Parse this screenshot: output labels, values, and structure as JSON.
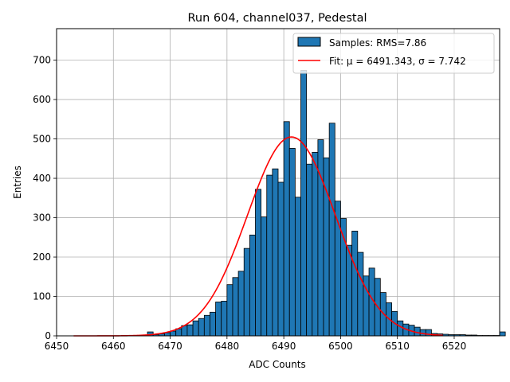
{
  "chart_data": {
    "type": "bar",
    "title": "Run 604, channel037, Pedestal",
    "xlabel": "ADC Counts",
    "ylabel": "Entries",
    "xlim": [
      6450,
      6528
    ],
    "ylim": [
      0,
      780
    ],
    "xticks": [
      "6450",
      "6460",
      "6470",
      "6480",
      "6490",
      "6500",
      "6510",
      "6520"
    ],
    "yticks": [
      "0",
      "100",
      "200",
      "300",
      "400",
      "500",
      "600",
      "700"
    ],
    "grid": true,
    "legend_position": "top-right",
    "bin_width": 1,
    "bin_start": 6466,
    "histogram": {
      "name": "Samples: RMS=7.86",
      "color": "#1f77b4",
      "edge_color": "#000000",
      "values": [
        10,
        3,
        5,
        8,
        12,
        18,
        26,
        28,
        38,
        44,
        52,
        60,
        86,
        88,
        130,
        148,
        164,
        222,
        256,
        372,
        302,
        408,
        424,
        390,
        544,
        476,
        352,
        674,
        436,
        466,
        498,
        452,
        540,
        342,
        298,
        230,
        266,
        212,
        152,
        172,
        146,
        110,
        84,
        62,
        38,
        30,
        27,
        22,
        16,
        16,
        6,
        5,
        4,
        3,
        3,
        3,
        2,
        2,
        1,
        1,
        1,
        1,
        10
      ]
    },
    "fit": {
      "name": "Fit: μ = 6491.343, σ = 7.742",
      "color": "#ff0000",
      "mu": 6491.343,
      "sigma": 7.742,
      "amplitude": 505,
      "x_range": [
        6453,
        6518
      ]
    }
  }
}
